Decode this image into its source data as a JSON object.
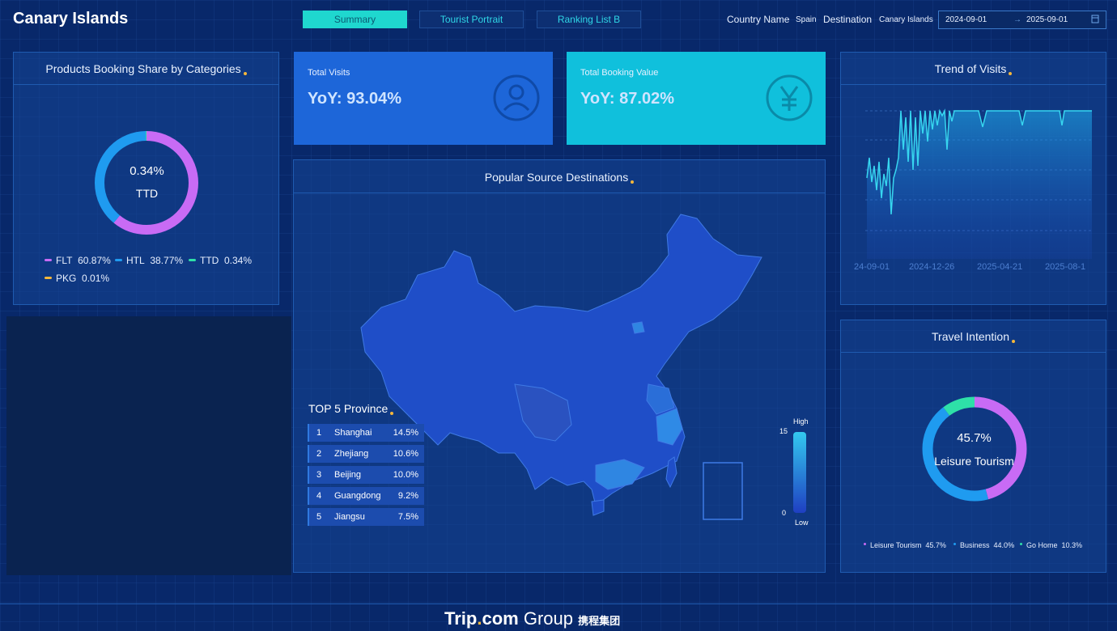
{
  "header": {
    "title": "Canary Islands",
    "tabs": [
      "Summary",
      "Tourist Portrait",
      "Ranking List B"
    ],
    "country_label": "Country Name",
    "country_value": "Spain",
    "destination_label": "Destination",
    "destination_value": "Canary Islands",
    "date_start": "2024-09-01",
    "date_arrow": "→",
    "date_end": "2025-09-01",
    "calendar_icon": "calendar-icon"
  },
  "booking_share": {
    "title": "Products Booking Share by Categories",
    "center_value": "0.34%",
    "center_label": "TTD",
    "legend": [
      {
        "label": "FLT",
        "value": "60.87%",
        "color": "#c86bf5"
      },
      {
        "label": "HTL",
        "value": "38.77%",
        "color": "#1f9bf0"
      },
      {
        "label": "TTD",
        "value": "0.34%",
        "color": "#2ee0a8"
      },
      {
        "label": "PKG",
        "value": "0.01%",
        "color": "#f5b73b"
      }
    ]
  },
  "kpis": [
    {
      "label": "Total Visits",
      "value": "YoY: 93.04%",
      "icon": "user-icon"
    },
    {
      "label": "Total Booking Value",
      "value": "YoY: 87.02%",
      "icon": "yen-icon"
    }
  ],
  "map": {
    "title": "Popular Source Destinations",
    "top5_title": "TOP 5 Province",
    "top5": [
      {
        "rank": "1",
        "name": "Shanghai",
        "pct": "14.5%"
      },
      {
        "rank": "2",
        "name": "Zhejiang",
        "pct": "10.6%"
      },
      {
        "rank": "3",
        "name": "Beijing",
        "pct": "10.0%"
      },
      {
        "rank": "4",
        "name": "Guangdong",
        "pct": "9.2%"
      },
      {
        "rank": "5",
        "name": "Jiangsu",
        "pct": "7.5%"
      }
    ],
    "scale_high_label": "High",
    "scale_low_label": "Low",
    "scale_max": "15",
    "scale_min": "0"
  },
  "trend": {
    "title": "Trend of Visits",
    "x_labels": [
      "24-09-01",
      "2024-12-26",
      "2025-04-21",
      "2025-08-1"
    ]
  },
  "intention": {
    "title": "Travel Intention",
    "center_value": "45.7%",
    "center_label": "Leisure Tourism",
    "legend": [
      {
        "label": "Leisure Tourism",
        "value": "45.7%",
        "color": "#c86bf5"
      },
      {
        "label": "Business",
        "value": "44.0%",
        "color": "#1f9bf0"
      },
      {
        "label": "Go Home",
        "value": "10.3%",
        "color": "#2ee0a8"
      }
    ]
  },
  "footer": {
    "brand_trip": "Trip",
    "brand_dot": ".",
    "brand_com": "com",
    "brand_group": "Group",
    "brand_cn": "携程集团"
  }
}
